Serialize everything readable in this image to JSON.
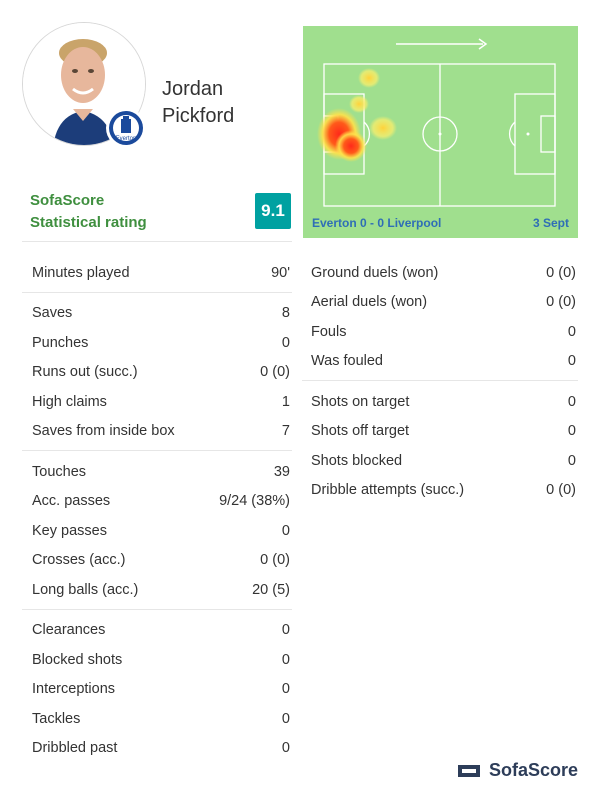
{
  "player": {
    "name_line1": "Jordan",
    "name_line2": "Pickford",
    "club_badge_icon": "everton-crest-icon",
    "club_badge_text": "Everton"
  },
  "rating": {
    "label_line1": "SofaScore",
    "label_line2": "Statistical rating",
    "value": "9.1",
    "color": "#00a1a1"
  },
  "heatmap": {
    "direction_icon": "arrow-right-icon",
    "match": "Everton 0 - 0 Liverpool",
    "date": "3 Sept",
    "pitch_color": "#a0df8e"
  },
  "stats_left": [
    [
      {
        "label": "Minutes played",
        "value": "90'"
      }
    ],
    [
      {
        "label": "Saves",
        "value": "8"
      },
      {
        "label": "Punches",
        "value": "0"
      },
      {
        "label": "Runs out (succ.)",
        "value": "0 (0)"
      },
      {
        "label": "High claims",
        "value": "1"
      },
      {
        "label": "Saves from inside box",
        "value": "7"
      }
    ],
    [
      {
        "label": "Touches",
        "value": "39"
      },
      {
        "label": "Acc. passes",
        "value": "9/24 (38%)"
      },
      {
        "label": "Key passes",
        "value": "0"
      },
      {
        "label": "Crosses (acc.)",
        "value": "0 (0)"
      },
      {
        "label": "Long balls (acc.)",
        "value": "20 (5)"
      }
    ],
    [
      {
        "label": "Clearances",
        "value": "0"
      },
      {
        "label": "Blocked shots",
        "value": "0"
      },
      {
        "label": "Interceptions",
        "value": "0"
      },
      {
        "label": "Tackles",
        "value": "0"
      },
      {
        "label": "Dribbled past",
        "value": "0"
      }
    ]
  ],
  "stats_right": [
    [
      {
        "label": "Ground duels (won)",
        "value": "0 (0)"
      },
      {
        "label": "Aerial duels (won)",
        "value": "0 (0)"
      },
      {
        "label": "Fouls",
        "value": "0"
      },
      {
        "label": "Was fouled",
        "value": "0"
      }
    ],
    [
      {
        "label": "Shots on target",
        "value": "0"
      },
      {
        "label": "Shots off target",
        "value": "0"
      },
      {
        "label": "Shots blocked",
        "value": "0"
      },
      {
        "label": "Dribble attempts (succ.)",
        "value": "0 (0)"
      }
    ]
  ],
  "footer": {
    "brand": "SofaScore",
    "logo_icon": "sofascore-logo-icon"
  }
}
